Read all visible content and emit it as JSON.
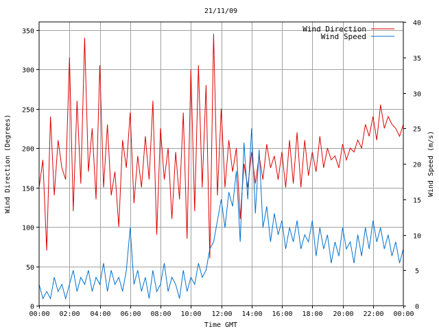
{
  "chart_data": {
    "type": "line",
    "title": "21/11/09",
    "xlabel": "Time GMT",
    "ylabel_left": "Wind Direction (Degrees)",
    "ylabel_right": "Wind Speed (m/s)",
    "x_ticks": [
      "00:00",
      "02:00",
      "04:00",
      "06:00",
      "08:00",
      "10:00",
      "12:00",
      "14:00",
      "16:00",
      "18:00",
      "20:00",
      "22:00",
      "00:00"
    ],
    "xlim_hours": [
      0,
      24
    ],
    "ylim_left": [
      0,
      360
    ],
    "yticks_left": [
      0,
      50,
      100,
      150,
      200,
      250,
      300,
      350
    ],
    "ylim_right": [
      0,
      40
    ],
    "yticks_right": [
      0,
      5,
      10,
      15,
      20,
      25,
      30,
      35,
      40
    ],
    "grid": true,
    "legend_position": "top-right",
    "series": [
      {
        "name": "Wind Direction",
        "axis": "left",
        "color": "#dd0000",
        "x_hours": [
          0,
          0.25,
          0.5,
          0.75,
          1,
          1.25,
          1.5,
          1.75,
          2,
          2.25,
          2.5,
          2.75,
          3,
          3.25,
          3.5,
          3.75,
          4,
          4.25,
          4.5,
          4.75,
          5,
          5.25,
          5.5,
          5.75,
          6,
          6.25,
          6.5,
          6.75,
          7,
          7.25,
          7.5,
          7.75,
          8,
          8.25,
          8.5,
          8.75,
          9,
          9.25,
          9.5,
          9.75,
          10,
          10.25,
          10.5,
          10.75,
          11,
          11.25,
          11.5,
          11.75,
          12,
          12.25,
          12.5,
          12.75,
          13,
          13.25,
          13.5,
          13.75,
          14,
          14.25,
          14.5,
          14.75,
          15,
          15.25,
          15.5,
          15.75,
          16,
          16.25,
          16.5,
          16.75,
          17,
          17.25,
          17.5,
          17.75,
          18,
          18.25,
          18.5,
          18.75,
          19,
          19.25,
          19.5,
          19.75,
          20,
          20.25,
          20.5,
          20.75,
          21,
          21.25,
          21.5,
          21.75,
          22,
          22.25,
          22.5,
          22.75,
          23,
          23.25,
          23.5,
          23.75,
          24
        ],
        "values": [
          150,
          185,
          70,
          240,
          140,
          210,
          175,
          160,
          315,
          120,
          260,
          155,
          340,
          170,
          225,
          135,
          305,
          150,
          230,
          140,
          170,
          100,
          210,
          175,
          245,
          130,
          190,
          150,
          215,
          160,
          260,
          90,
          225,
          160,
          200,
          110,
          195,
          135,
          245,
          85,
          300,
          120,
          305,
          150,
          280,
          60,
          345,
          140,
          250,
          150,
          210,
          170,
          200,
          110,
          180,
          150,
          195,
          155,
          190,
          160,
          205,
          175,
          190,
          160,
          195,
          150,
          210,
          155,
          220,
          150,
          210,
          165,
          195,
          170,
          215,
          175,
          200,
          185,
          190,
          175,
          205,
          185,
          200,
          195,
          210,
          200,
          230,
          215,
          240,
          210,
          255,
          225,
          240,
          230,
          225,
          215,
          230
        ]
      },
      {
        "name": "Wind Speed",
        "axis": "right",
        "color": "#0070cc",
        "x_hours": [
          0,
          0.25,
          0.5,
          0.75,
          1,
          1.25,
          1.5,
          1.75,
          2,
          2.25,
          2.5,
          2.75,
          3,
          3.25,
          3.5,
          3.75,
          4,
          4.25,
          4.5,
          4.75,
          5,
          5.25,
          5.5,
          5.75,
          6,
          6.25,
          6.5,
          6.75,
          7,
          7.25,
          7.5,
          7.75,
          8,
          8.25,
          8.5,
          8.75,
          9,
          9.25,
          9.5,
          9.75,
          10,
          10.25,
          10.5,
          10.75,
          11,
          11.25,
          11.5,
          11.75,
          12,
          12.25,
          12.5,
          12.75,
          13,
          13.25,
          13.5,
          13.75,
          14,
          14.25,
          14.5,
          14.75,
          15,
          15.25,
          15.5,
          15.75,
          16,
          16.25,
          16.5,
          16.75,
          17,
          17.25,
          17.5,
          17.75,
          18,
          18.25,
          18.5,
          18.75,
          19,
          19.25,
          19.5,
          19.75,
          20,
          20.25,
          20.5,
          20.75,
          21,
          21.25,
          21.5,
          21.75,
          22,
          22.25,
          22.5,
          22.75,
          23,
          23.25,
          23.5,
          23.75,
          24
        ],
        "values": [
          3,
          1,
          2,
          1,
          4,
          2,
          3,
          1,
          3,
          5,
          2,
          4,
          3,
          5,
          2,
          4,
          3,
          6,
          2,
          5,
          3,
          4,
          2,
          5,
          11,
          3,
          5,
          2,
          4,
          1,
          5,
          2,
          3,
          6,
          2,
          4,
          3,
          1,
          5,
          2,
          4,
          3,
          6,
          4,
          5,
          8,
          9,
          12,
          15,
          11,
          16,
          14,
          19,
          9,
          23,
          15,
          25,
          13,
          22,
          11,
          14,
          9,
          13,
          10,
          12,
          8,
          11,
          9,
          12,
          8,
          10,
          9,
          12,
          7,
          11,
          8,
          10,
          6,
          9,
          7,
          11,
          8,
          9,
          6,
          10,
          7,
          11,
          8,
          12,
          9,
          11,
          8,
          10,
          7,
          9,
          6,
          8
        ]
      }
    ]
  }
}
